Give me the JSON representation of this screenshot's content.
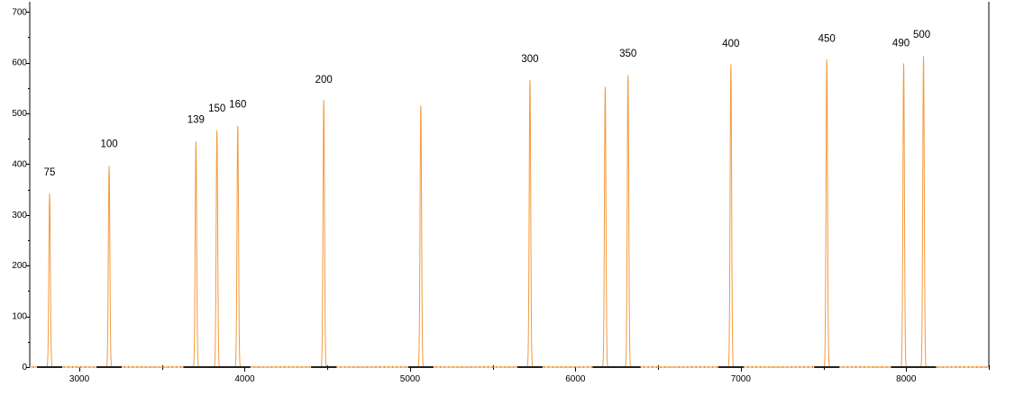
{
  "chart_data": {
    "type": "line",
    "title": "",
    "xlabel": "",
    "ylabel": "",
    "xlim": [
      2700,
      8500
    ],
    "ylim": [
      0,
      720
    ],
    "x_ticks": [
      3000,
      4000,
      5000,
      6000,
      7000,
      8000
    ],
    "x_minor_ticks": [
      3500,
      4500,
      5500,
      6500,
      7500,
      8500
    ],
    "y_ticks": [
      0,
      100,
      200,
      300,
      400,
      500,
      600,
      700
    ],
    "grid": false,
    "series": [
      {
        "color": "#f39a3e",
        "peaks": [
          {
            "label": "75",
            "x": 2820,
            "y": 342
          },
          {
            "label": "100",
            "x": 3180,
            "y": 398
          },
          {
            "label": "139",
            "x": 3705,
            "y": 446
          },
          {
            "label": "150",
            "x": 3832,
            "y": 468
          },
          {
            "label": "160",
            "x": 3958,
            "y": 476
          },
          {
            "label": "200",
            "x": 4478,
            "y": 525
          },
          {
            "label": "",
            "x": 5065,
            "y": 517
          },
          {
            "label": "300",
            "x": 5725,
            "y": 566
          },
          {
            "label": "",
            "x": 6180,
            "y": 552
          },
          {
            "label": "350",
            "x": 6318,
            "y": 576
          },
          {
            "label": "400",
            "x": 6940,
            "y": 596
          },
          {
            "label": "450",
            "x": 7520,
            "y": 606
          },
          {
            "label": "490",
            "x": 7985,
            "y": 597
          },
          {
            "label": "500",
            "x": 8105,
            "y": 614
          }
        ]
      }
    ]
  }
}
